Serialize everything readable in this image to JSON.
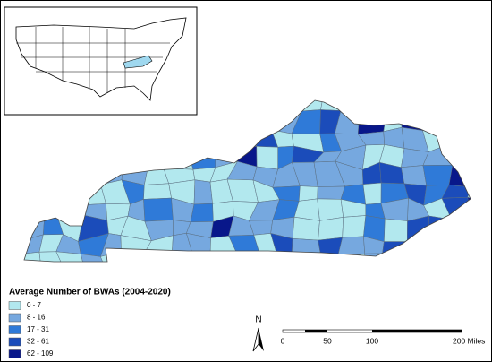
{
  "legend": {
    "title": "Average Number of BWAs (2004-2020)",
    "items": [
      {
        "label": "0 - 7",
        "color": "#b2e8ee"
      },
      {
        "label": "8 - 16",
        "color": "#76a8df"
      },
      {
        "label": "17 - 31",
        "color": "#2f7ad8"
      },
      {
        "label": "32 - 61",
        "color": "#1b4cba"
      },
      {
        "label": "62 - 109",
        "color": "#08178a"
      }
    ]
  },
  "north_arrow": {
    "label": "N"
  },
  "scale_bar": {
    "labels": [
      "0",
      "50",
      "100",
      "200 Miles"
    ]
  }
}
